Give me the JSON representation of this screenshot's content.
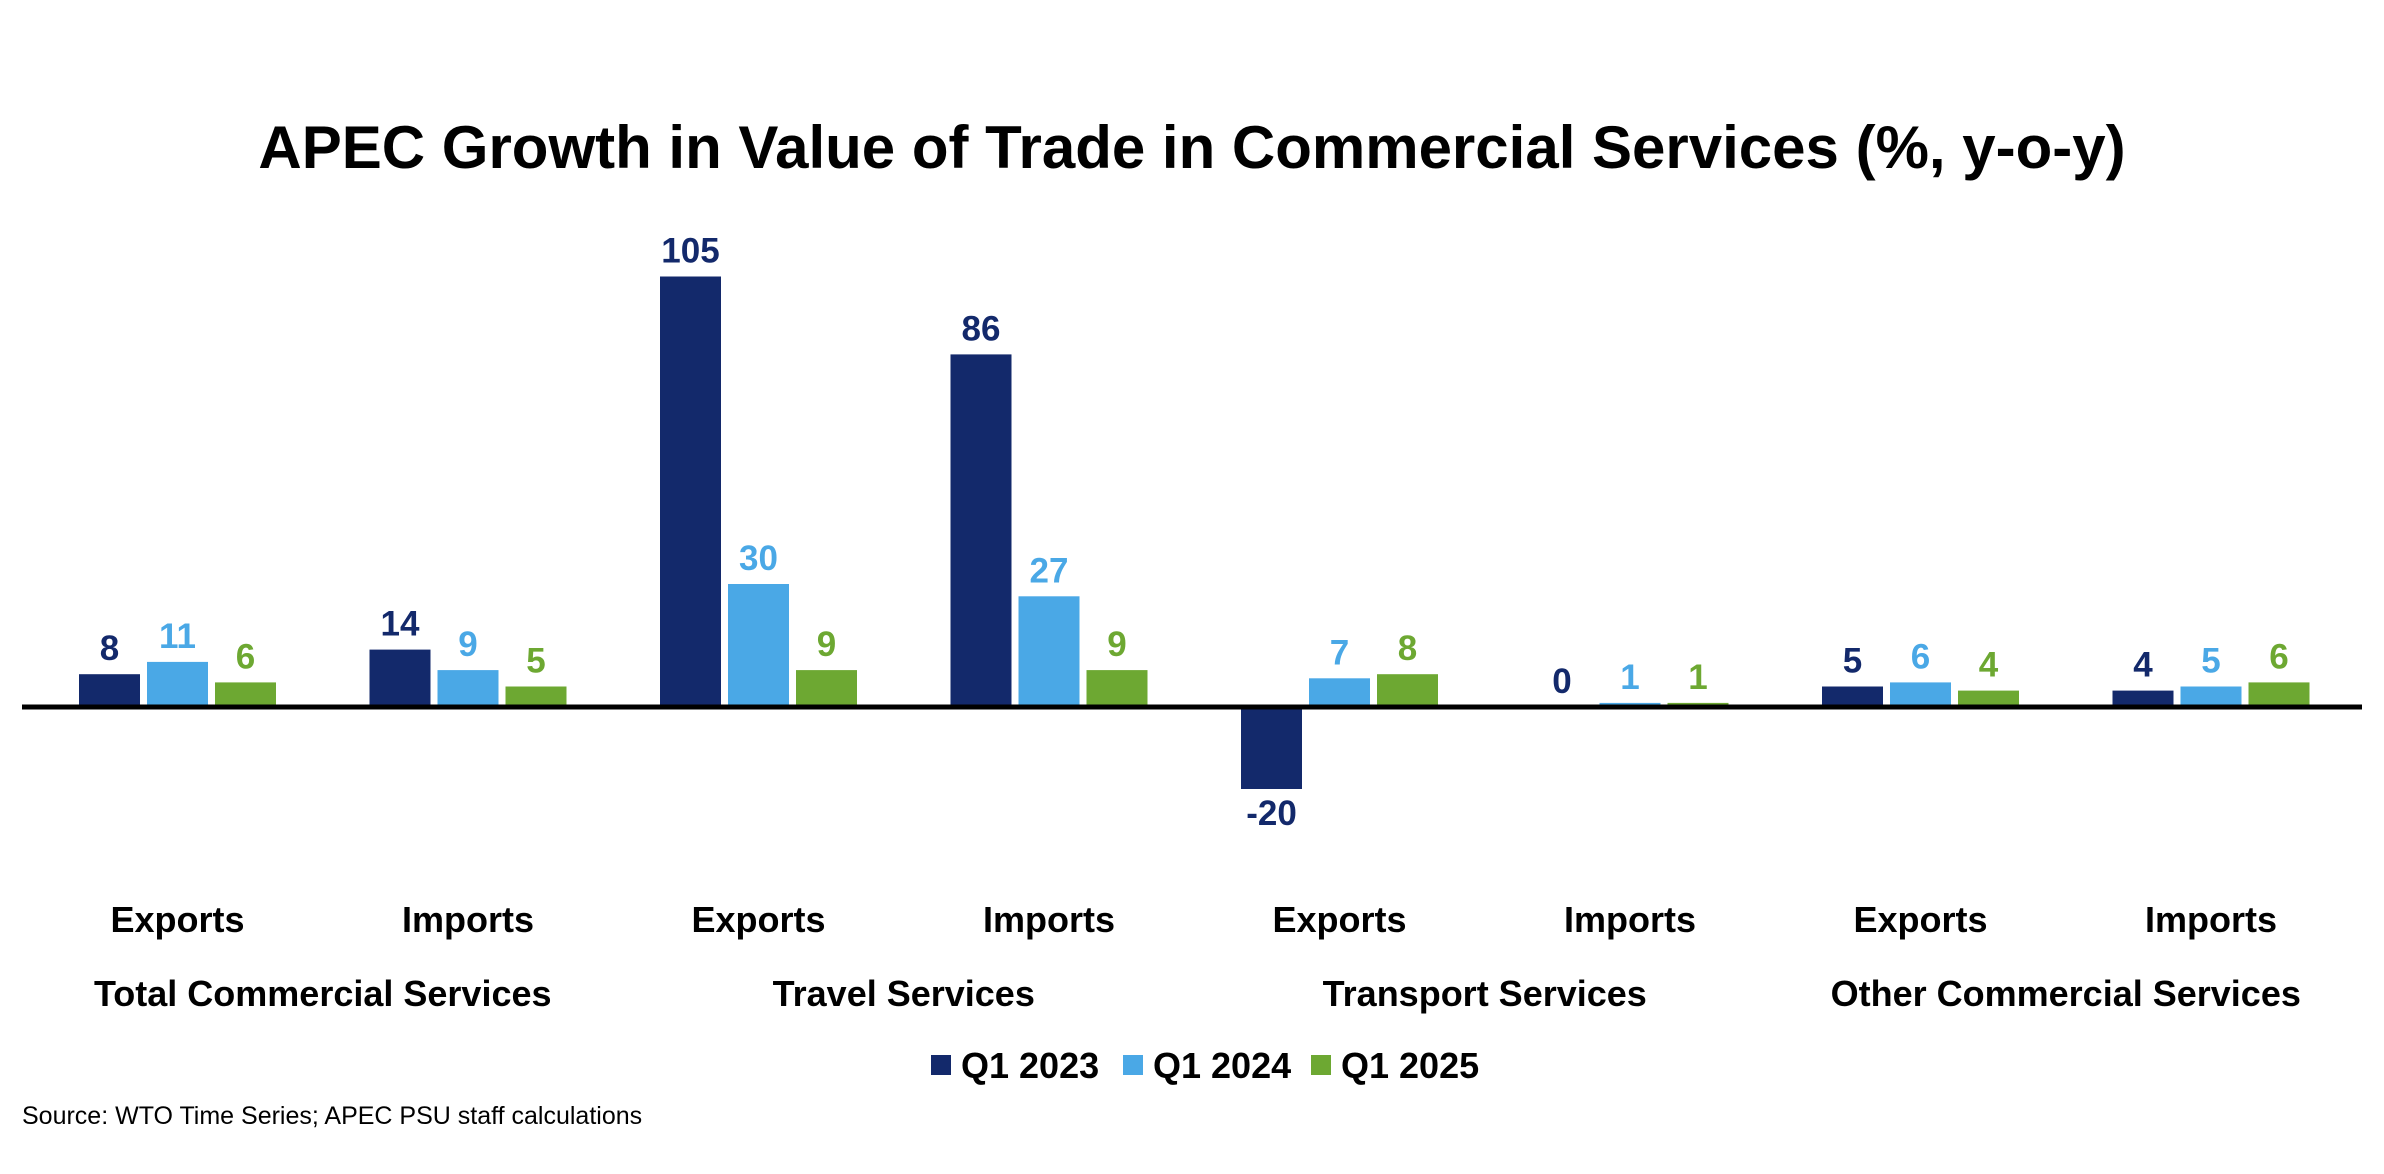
{
  "chart_data": {
    "type": "bar",
    "title": "APEC Growth in Value of Trade in Commercial Services (%, y-o-y)",
    "categories": [
      "Exports",
      "Imports",
      "Exports",
      "Imports",
      "Exports",
      "Imports",
      "Exports",
      "Imports"
    ],
    "groups": [
      "Total Commercial Services",
      "Travel Services",
      "Transport Services",
      "Other Commercial Services"
    ],
    "series": [
      {
        "name": "Q1 2023",
        "color": "#13296b",
        "label_color": "#13296b",
        "values": [
          8,
          14,
          105,
          86,
          -20,
          0,
          5,
          4
        ]
      },
      {
        "name": "Q1 2024",
        "color": "#4aa8e6",
        "label_color": "#4aa8e6",
        "values": [
          11,
          9,
          30,
          27,
          7,
          1,
          6,
          5
        ]
      },
      {
        "name": "Q1 2025",
        "color": "#6da832",
        "label_color": "#6da832",
        "values": [
          6,
          5,
          9,
          9,
          8,
          1,
          4,
          6
        ]
      }
    ],
    "legend_position": "bottom",
    "grid": false,
    "ylim": [
      -20,
      105
    ]
  },
  "source": "Source: WTO Time Series; APEC PSU staff calculations"
}
